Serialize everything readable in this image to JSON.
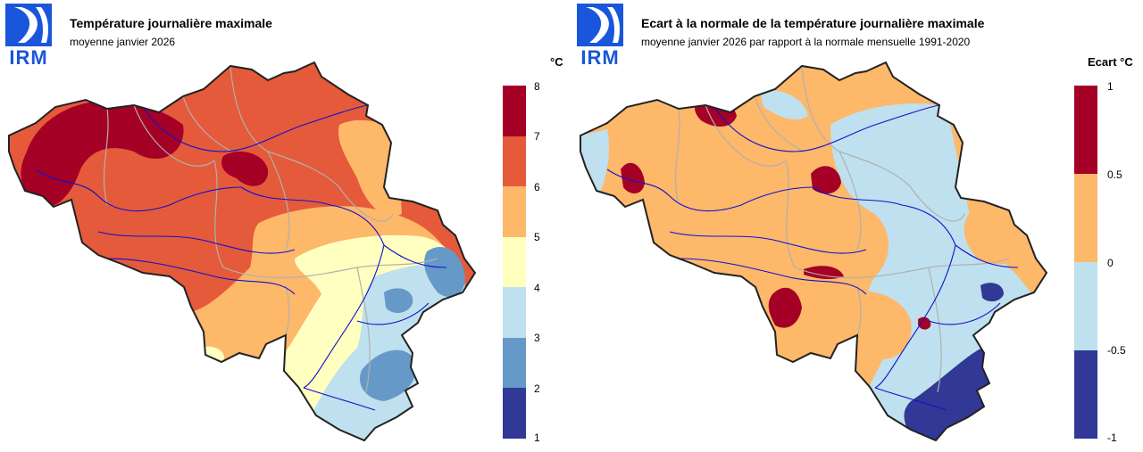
{
  "org": {
    "logo_text": "IRM"
  },
  "panels": [
    {
      "title": "Température journalière maximale",
      "subtitle": "moyenne janvier 2026",
      "unit": "°C",
      "legend": {
        "ticks": [
          "8",
          "7",
          "6",
          "5",
          "4",
          "3",
          "2",
          "1"
        ],
        "colors": [
          "#a50026",
          "#e55a3a",
          "#fdb86a",
          "#ffffc0",
          "#bfe0ee",
          "#6699c8",
          "#313895"
        ]
      }
    },
    {
      "title": "Ecart à la normale de la température journalière maximale",
      "subtitle": "moyenne janvier 2026 par rapport à la normale mensuelle 1991-2020",
      "unit": "Ecart °C",
      "legend": {
        "ticks": [
          "1",
          "0.5",
          "0",
          "-0.5",
          "-1"
        ],
        "colors": [
          "#a50026",
          "#fdb86a",
          "#bfe0ee",
          "#313895"
        ]
      }
    }
  ],
  "colors": {
    "border": "#222222",
    "river": "#1010d0",
    "province": "#b0b0b0",
    "logo": "#1a56db"
  }
}
